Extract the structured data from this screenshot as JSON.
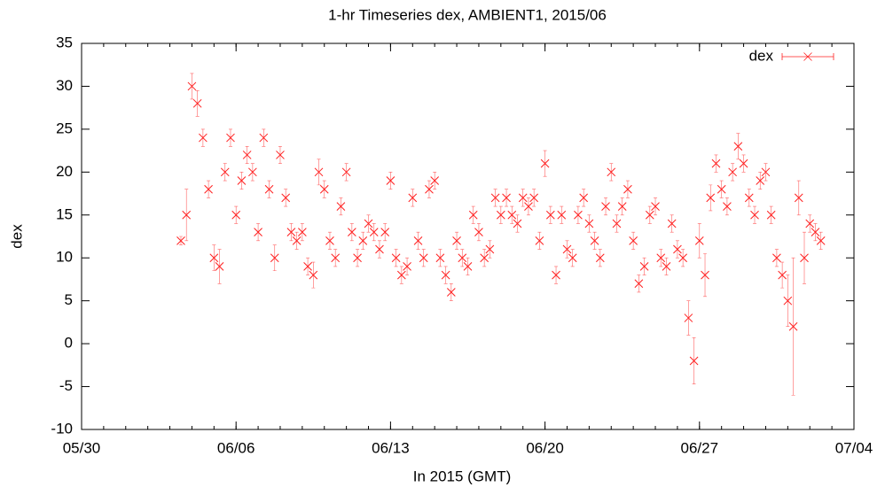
{
  "chart_data": {
    "type": "scatter",
    "title": "1-hr Timeseries dex, AMBIENT1, 2015/06",
    "xlabel": "In 2015 (GMT)",
    "ylabel": "dex",
    "xlim": [
      "05/30",
      "07/04"
    ],
    "xticks": [
      "05/30",
      "06/06",
      "06/13",
      "06/20",
      "06/27",
      "07/04"
    ],
    "ylim": [
      -10,
      35
    ],
    "yticks": [
      -10,
      -5,
      0,
      5,
      10,
      15,
      20,
      25,
      30,
      35
    ],
    "legend": "top-right",
    "x": [
      "06/03 12:00",
      "06/03 18:00",
      "06/04 00:00",
      "06/04 06:00",
      "06/04 12:00",
      "06/04 18:00",
      "06/05 00:00",
      "06/05 06:00",
      "06/05 12:00",
      "06/05 18:00",
      "06/06 00:00",
      "06/06 06:00",
      "06/06 12:00",
      "06/06 18:00",
      "06/07 00:00",
      "06/07 06:00",
      "06/07 12:00",
      "06/07 18:00",
      "06/08 00:00",
      "06/08 06:00",
      "06/08 12:00",
      "06/08 18:00",
      "06/09 00:00",
      "06/09 06:00",
      "06/09 12:00",
      "06/09 18:00",
      "06/10 00:00",
      "06/10 06:00",
      "06/10 12:00",
      "06/10 18:00",
      "06/11 00:00",
      "06/11 06:00",
      "06/11 12:00",
      "06/11 18:00",
      "06/12 00:00",
      "06/12 06:00",
      "06/12 12:00",
      "06/12 18:00",
      "06/13 00:00",
      "06/13 06:00",
      "06/13 12:00",
      "06/13 18:00",
      "06/14 00:00",
      "06/14 06:00",
      "06/14 12:00",
      "06/14 18:00",
      "06/15 00:00",
      "06/15 06:00",
      "06/15 12:00",
      "06/15 18:00",
      "06/16 00:00",
      "06/16 06:00",
      "06/16 12:00",
      "06/16 18:00",
      "06/17 00:00",
      "06/17 06:00",
      "06/17 12:00",
      "06/17 18:00",
      "06/18 00:00",
      "06/18 06:00",
      "06/18 12:00",
      "06/18 18:00",
      "06/19 00:00",
      "06/19 06:00",
      "06/19 12:00",
      "06/19 18:00",
      "06/20 00:00",
      "06/20 06:00",
      "06/20 12:00",
      "06/20 18:00",
      "06/21 00:00",
      "06/21 06:00",
      "06/21 12:00",
      "06/21 18:00",
      "06/22 00:00",
      "06/22 06:00",
      "06/22 12:00",
      "06/22 18:00",
      "06/23 00:00",
      "06/23 06:00",
      "06/23 12:00",
      "06/23 18:00",
      "06/24 00:00",
      "06/24 06:00",
      "06/24 12:00",
      "06/24 18:00",
      "06/25 00:00",
      "06/25 06:00",
      "06/25 12:00",
      "06/25 18:00",
      "06/26 00:00",
      "06/26 06:00",
      "06/26 12:00",
      "06/26 18:00",
      "06/27 00:00",
      "06/27 06:00",
      "06/27 12:00",
      "06/27 18:00",
      "06/28 00:00",
      "06/28 06:00",
      "06/28 12:00",
      "06/28 18:00",
      "06/29 00:00",
      "06/29 06:00",
      "06/29 12:00",
      "06/29 18:00",
      "06/30 00:00",
      "06/30 06:00",
      "06/30 12:00",
      "06/30 18:00",
      "07/01 00:00",
      "07/01 06:00",
      "07/01 12:00",
      "07/01 18:00",
      "07/02 00:00",
      "07/02 06:00",
      "07/02 12:00"
    ],
    "series": [
      {
        "name": "dex",
        "color": "#ff2020",
        "values": [
          12,
          15,
          30,
          28,
          24,
          18,
          10,
          9,
          20,
          24,
          15,
          19,
          22,
          20,
          13,
          24,
          18,
          10,
          22,
          17,
          13,
          12,
          13,
          9,
          8,
          20,
          18,
          12,
          10,
          16,
          20,
          13,
          10,
          12,
          14,
          13,
          11,
          13,
          19,
          10,
          8,
          9,
          17,
          12,
          10,
          18,
          19,
          10,
          8,
          6,
          12,
          10,
          9,
          15,
          13,
          10,
          11,
          17,
          15,
          17,
          15,
          14,
          17,
          16,
          17,
          12,
          21,
          15,
          8,
          15,
          11,
          10,
          15,
          17,
          14,
          12,
          10,
          16,
          20,
          14,
          16,
          18,
          12,
          7,
          9,
          15,
          16,
          10,
          9,
          14,
          11,
          10,
          3,
          -2,
          12,
          8,
          17,
          21,
          18,
          16,
          20,
          23,
          21,
          17,
          15,
          19,
          20,
          15,
          10,
          8,
          5,
          2,
          17,
          10,
          14,
          13,
          12
        ],
        "errors": [
          0.5,
          3,
          1.5,
          1.5,
          1,
          1,
          1.5,
          2,
          1,
          1,
          1,
          1,
          1,
          1,
          1,
          1,
          1,
          1.5,
          1,
          1,
          1,
          1,
          1,
          1,
          1.5,
          1.5,
          1,
          1,
          1,
          1,
          1,
          1,
          1,
          1,
          1,
          1,
          1,
          1,
          1,
          1,
          1,
          1,
          1,
          1,
          1,
          1,
          1,
          1,
          1,
          1,
          1,
          1,
          1,
          1,
          1,
          1,
          1,
          1,
          1,
          1,
          1,
          1,
          1,
          1,
          1,
          1,
          1.5,
          1,
          1,
          1,
          1,
          1,
          1,
          1,
          1,
          1,
          1,
          1,
          1,
          1,
          1,
          1,
          1,
          1,
          1,
          1,
          1,
          1,
          1,
          1,
          1,
          1,
          2,
          2.7,
          2,
          2.5,
          1.5,
          1,
          1,
          1,
          1,
          1.5,
          1,
          1,
          1,
          1,
          1,
          1,
          1,
          1.5,
          3,
          8,
          2,
          3,
          1,
          1,
          1
        ]
      }
    ]
  }
}
